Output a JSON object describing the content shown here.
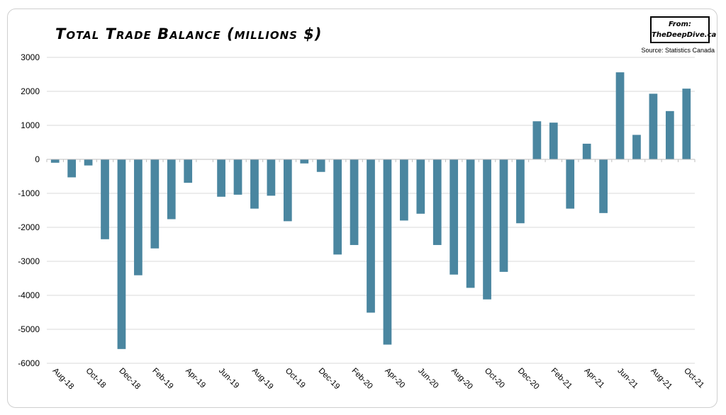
{
  "title": "Total Trade Balance (millions $)",
  "badge": {
    "line1": "From:",
    "line2": "TheDeepDive.ca"
  },
  "source": "Source: Statistics Canada",
  "colors": {
    "bar": "#4a86a0",
    "grid": "#d9d9d9",
    "axis": "#bfbfbf"
  },
  "chart_data": {
    "type": "bar",
    "title": "Total Trade Balance (millions $)",
    "xlabel": "",
    "ylabel": "",
    "ylim": [
      -6000,
      3000
    ],
    "yticks": [
      3000,
      2000,
      1000,
      0,
      -1000,
      -2000,
      -3000,
      -4000,
      -5000,
      -6000
    ],
    "grid": true,
    "categories": [
      "Aug-18",
      "Sep-18",
      "Oct-18",
      "Nov-18",
      "Dec-18",
      "Jan-19",
      "Feb-19",
      "Mar-19",
      "Apr-19",
      "May-19",
      "Jun-19",
      "Jul-19",
      "Aug-19",
      "Sep-19",
      "Oct-19",
      "Nov-19",
      "Dec-19",
      "Jan-20",
      "Feb-20",
      "Mar-20",
      "Apr-20",
      "May-20",
      "Jun-20",
      "Jul-20",
      "Aug-20",
      "Sep-20",
      "Oct-20",
      "Nov-20",
      "Dec-20",
      "Jan-21",
      "Feb-21",
      "Mar-21",
      "Apr-21",
      "May-21",
      "Jun-21",
      "Jul-21",
      "Aug-21",
      "Sep-21",
      "Oct-21"
    ],
    "tick_labels": [
      "Aug-18",
      "Oct-18",
      "Dec-18",
      "Feb-19",
      "Apr-19",
      "Jun-19",
      "Aug-19",
      "Oct-19",
      "Dec-19",
      "Feb-20",
      "Apr-20",
      "Jun-20",
      "Aug-20",
      "Oct-20",
      "Dec-20",
      "Feb-21",
      "Apr-21",
      "Jun-21",
      "Aug-21",
      "Oct-21"
    ],
    "values": [
      -100,
      -530,
      -180,
      -2350,
      -5580,
      -3410,
      -2620,
      -1760,
      -690,
      0,
      -1100,
      -1040,
      -1450,
      -1070,
      -1820,
      -120,
      -370,
      -2800,
      -2520,
      -4510,
      -5450,
      -1800,
      -1600,
      -2520,
      -3390,
      -3780,
      -4120,
      -3310,
      -1880,
      1120,
      1080,
      -1450,
      460,
      -1580,
      2560,
      720,
      1930,
      1420,
      2080
    ]
  }
}
